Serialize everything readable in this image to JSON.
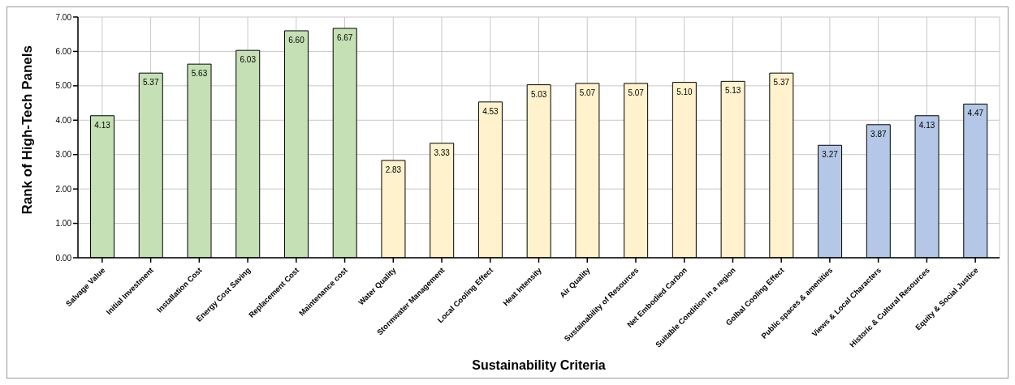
{
  "chart_data": {
    "type": "bar",
    "xlabel": "Sustainability Criteria",
    "ylabel": "Rank of High-Tech Panels",
    "categories": [
      "Salvage Value",
      "Initial Investment",
      "Installation Cost",
      "Energy Cost Saving",
      "Replacement Cost",
      "Maintenance cost",
      "Water Quality",
      "Stormwater Management",
      "Local Cooling Effect",
      "Heat Intensity",
      "Air Quality",
      "Sustainability of Resources",
      "Net Embodied Carbon",
      "Suitable Condition in a region",
      "Golbal Cooling Effect",
      "Public spaces & amenities",
      "Views & Local Characters",
      "Historic & Cultural Resources",
      "Equity & Social Justice"
    ],
    "values": [
      4.13,
      5.37,
      5.63,
      6.03,
      6.6,
      6.67,
      2.83,
      3.33,
      4.53,
      5.03,
      5.07,
      5.07,
      5.1,
      5.13,
      5.37,
      3.27,
      3.87,
      4.13,
      4.47
    ],
    "value_labels": [
      "4.13",
      "5.37",
      "5.63",
      "6.03",
      "6.60",
      "6.67",
      "2.83",
      "3.33",
      "4.53",
      "5.03",
      "5.07",
      "5.07",
      "5.10",
      "5.13",
      "5.37",
      "3.27",
      "3.87",
      "4.13",
      "4.47"
    ],
    "colors": [
      "#c5e0b4",
      "#c5e0b4",
      "#c5e0b4",
      "#c5e0b4",
      "#c5e0b4",
      "#c5e0b4",
      "#fff2cc",
      "#fff2cc",
      "#fff2cc",
      "#fff2cc",
      "#fff2cc",
      "#fff2cc",
      "#fff2cc",
      "#fff2cc",
      "#fff2cc",
      "#b4c7e7",
      "#b4c7e7",
      "#b4c7e7",
      "#b4c7e7"
    ],
    "ylim": [
      0,
      7
    ],
    "yticks": [
      {
        "value": 0,
        "label": "0.00"
      },
      {
        "value": 1,
        "label": "1.00"
      },
      {
        "value": 2,
        "label": "2.00"
      },
      {
        "value": 3,
        "label": "3.00"
      },
      {
        "value": 4,
        "label": "4.00"
      },
      {
        "value": 5,
        "label": "5.00"
      },
      {
        "value": 6,
        "label": "6.00"
      },
      {
        "value": 7,
        "label": "7.00"
      }
    ],
    "grid": true
  }
}
